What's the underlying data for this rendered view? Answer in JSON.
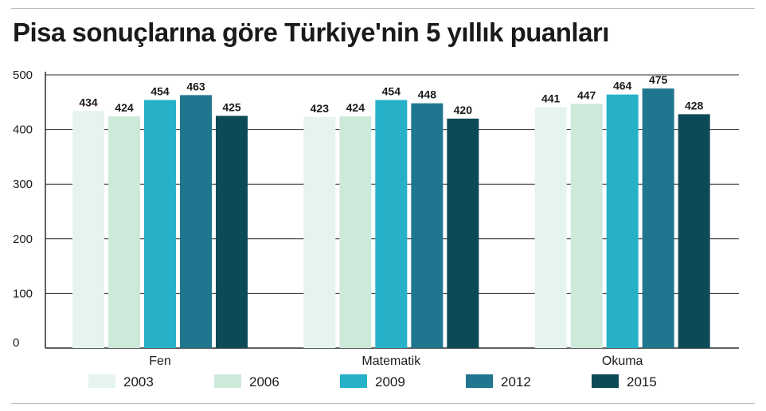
{
  "title": "Pisa sonuçlarına göre Türkiye'nin 5 yıllık puanları",
  "chart_data": {
    "type": "bar",
    "title": "Pisa sonuçlarına göre Türkiye'nin 5 yıllık puanları",
    "categories": [
      "Fen",
      "Matematik",
      "Okuma"
    ],
    "series": [
      {
        "name": "2003",
        "values": [
          434,
          423,
          441
        ],
        "color": "#e6f4ee"
      },
      {
        "name": "2006",
        "values": [
          424,
          424,
          447
        ],
        "color": "#cde9da"
      },
      {
        "name": "2009",
        "values": [
          454,
          454,
          464
        ],
        "color": "#26b1c9"
      },
      {
        "name": "2012",
        "values": [
          463,
          448,
          475
        ],
        "color": "#20768e"
      },
      {
        "name": "2015",
        "values": [
          425,
          420,
          428
        ],
        "color": "#0d4a58"
      }
    ],
    "yticks": [
      0,
      100,
      200,
      300,
      400,
      500
    ],
    "ylim": [
      0,
      500
    ],
    "xlabel": "",
    "ylabel": "",
    "grid": true,
    "legend": "bottom"
  }
}
